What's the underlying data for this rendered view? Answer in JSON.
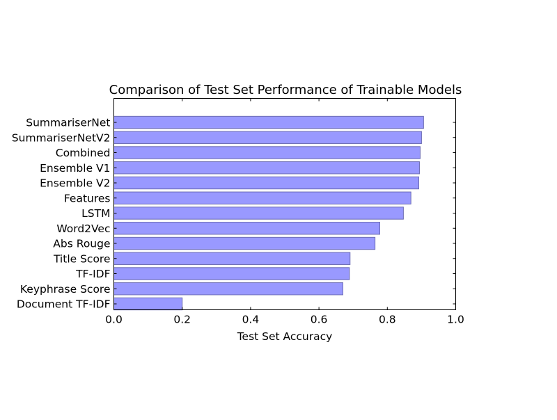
{
  "chart_data": {
    "type": "bar",
    "orientation": "horizontal",
    "title": "Comparison of Test Set Performance of Trainable Models",
    "xlabel": "Test Set Accuracy",
    "ylabel": "",
    "xlim": [
      0.0,
      1.0
    ],
    "x_ticks": [
      "0.0",
      "0.2",
      "0.4",
      "0.6",
      "0.8",
      "1.0"
    ],
    "categories": [
      "SummariserNet",
      "SummariserNetV2",
      "Combined",
      "Ensemble V1",
      "Ensemble V2",
      "Features",
      "LSTM",
      "Word2Vec",
      "Abs Rouge",
      "Title Score",
      "TF-IDF",
      "Keyphrase Score",
      "Document TF-IDF"
    ],
    "values": [
      0.906,
      0.9,
      0.896,
      0.894,
      0.892,
      0.869,
      0.847,
      0.778,
      0.764,
      0.691,
      0.689,
      0.67,
      0.2
    ],
    "grid": false,
    "legend": "none",
    "colors": {
      "bar_fill": "#9999ff",
      "bar_edge": "#6a6ab3",
      "axis": "#000000"
    }
  }
}
